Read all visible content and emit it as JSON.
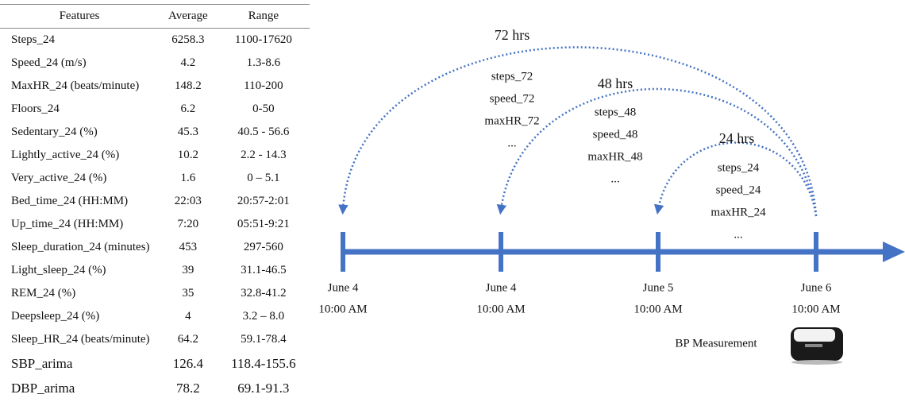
{
  "table": {
    "header": [
      "Features",
      "Average",
      "Range"
    ],
    "rows": [
      [
        "Steps_24",
        "6258.3",
        "1100-17620"
      ],
      [
        "Speed_24 (m/s)",
        "4.2",
        "1.3-8.6"
      ],
      [
        "MaxHR_24  (beats/minute)",
        "148.2",
        "110-200"
      ],
      [
        "Floors_24",
        "6.2",
        "0-50"
      ],
      [
        "Sedentary_24  (%)",
        "45.3",
        "40.5 - 56.6"
      ],
      [
        "Lightly_active_24  (%)",
        "10.2",
        "2.2 - 14.3"
      ],
      [
        "Very_active_24  (%)",
        "1.6",
        "0 – 5.1"
      ],
      [
        "Bed_time_24  (HH:MM)",
        "22:03",
        "20:57-2:01"
      ],
      [
        "Up_time_24  (HH:MM)",
        "7:20",
        "05:51-9:21"
      ],
      [
        "Sleep_duration_24 (minutes)",
        "453",
        "297-560"
      ],
      [
        "Light_sleep_24  (%)",
        "39",
        "31.1-46.5"
      ],
      [
        "REM_24  (%)",
        "35",
        "32.8-41.2"
      ],
      [
        "Deepsleep_24  (%)",
        "4",
        "3.2 – 8.0"
      ],
      [
        "Sleep_HR_24 (beats/minute)",
        "64.2",
        "59.1-78.4"
      ],
      [
        "SBP_arima",
        "126.4",
        "118.4-155.6"
      ],
      [
        "DBP_arima",
        "78.2",
        "69.1-91.3"
      ]
    ]
  },
  "diagram": {
    "arcs": [
      {
        "label": "72 hrs",
        "items": [
          "steps_72",
          "speed_72",
          "maxHR_72",
          "..."
        ]
      },
      {
        "label": "48 hrs",
        "items": [
          "steps_48",
          "speed_48",
          "maxHR_48",
          "..."
        ]
      },
      {
        "label": "24 hrs",
        "items": [
          "steps_24",
          "speed_24",
          "maxHR_24",
          "..."
        ]
      }
    ],
    "ticks": [
      {
        "date": "June 4",
        "time": "10:00 AM"
      },
      {
        "date": "June 4",
        "time": "10:00 AM"
      },
      {
        "date": "June 5",
        "time": "10:00 AM"
      },
      {
        "date": "June 6",
        "time": "10:00 AM"
      }
    ],
    "device_label": "BP Measurement"
  }
}
